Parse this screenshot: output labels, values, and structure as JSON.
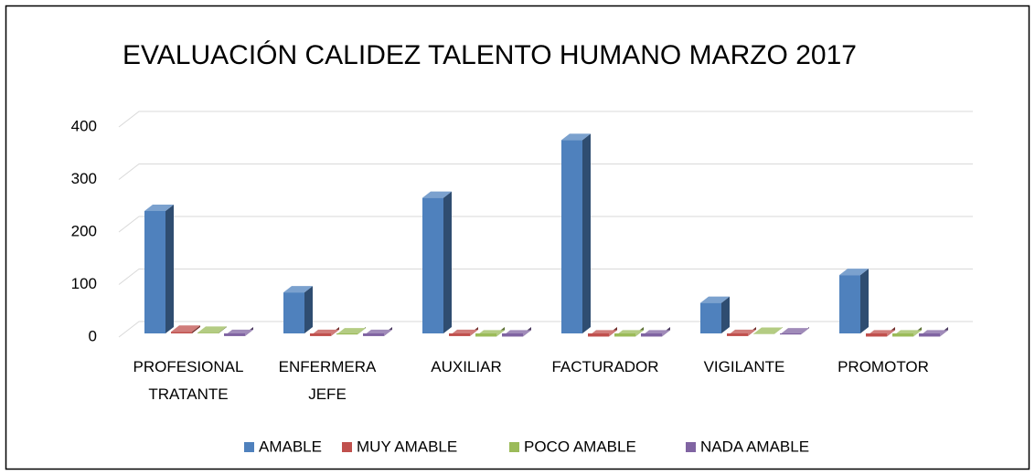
{
  "chart_data": {
    "type": "bar3d",
    "title": "EVALUACIÓN CALIDEZ TALENTO HUMANO MARZO 2017",
    "categories": [
      "PROFESIONAL TRATANTE",
      "ENFERMERA JEFE",
      "AUXILIAR",
      "FACTURADOR",
      "VIGILANTE",
      "PROMOTOR"
    ],
    "series": [
      {
        "name": "AMABLE",
        "color": "#4f81bd",
        "values": [
          240,
          85,
          265,
          375,
          65,
          118
        ]
      },
      {
        "name": "MUY AMABLE",
        "color": "#c0504d",
        "values": [
          10,
          2,
          2,
          1,
          2,
          1
        ]
      },
      {
        "name": "POCO AMABLE",
        "color": "#9bbb59",
        "values": [
          8,
          5,
          1,
          1,
          6,
          1
        ]
      },
      {
        "name": "NADA AMABLE",
        "color": "#8064a2",
        "values": [
          2,
          2,
          1,
          1,
          5,
          1
        ]
      }
    ],
    "ylim": [
      0,
      400
    ],
    "yticks": [
      0,
      100,
      200,
      300,
      400
    ],
    "grid": true,
    "legend": "bottom"
  }
}
